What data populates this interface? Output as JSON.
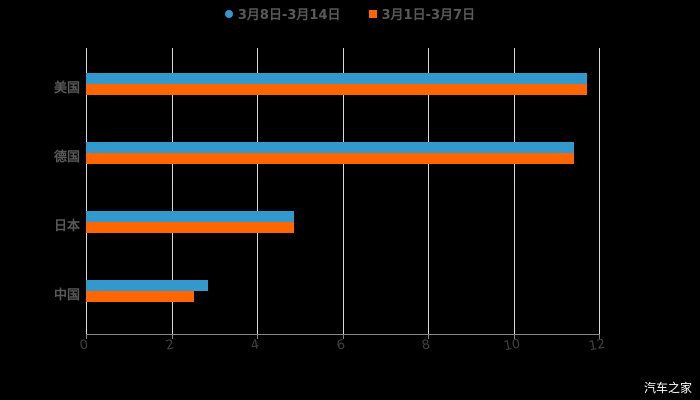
{
  "chart_data": {
    "type": "bar",
    "orientation": "horizontal",
    "title": "",
    "categories": [
      "美国",
      "德国",
      "日本",
      "中国"
    ],
    "series": [
      {
        "name": "3月8日-3月14日",
        "color": "#3399cc",
        "values": [
          11.72,
          11.42,
          4.87,
          2.85
        ]
      },
      {
        "name": "3月1日-3月7日",
        "color": "#ff6600",
        "values": [
          11.72,
          11.42,
          4.87,
          2.53
        ]
      }
    ],
    "xlabel": "",
    "ylabel": "",
    "xlim": [
      0,
      12
    ],
    "x_ticks": [
      "0",
      "2",
      "4",
      "6",
      "8",
      "10",
      "12"
    ],
    "grid": true,
    "legend_position": "top"
  },
  "legend": [
    {
      "label": "3月8日-3月14日",
      "color": "#3399cc"
    },
    {
      "label": "3月1日-3月7日",
      "color": "#ff6600"
    }
  ],
  "watermark": "汽车之家"
}
